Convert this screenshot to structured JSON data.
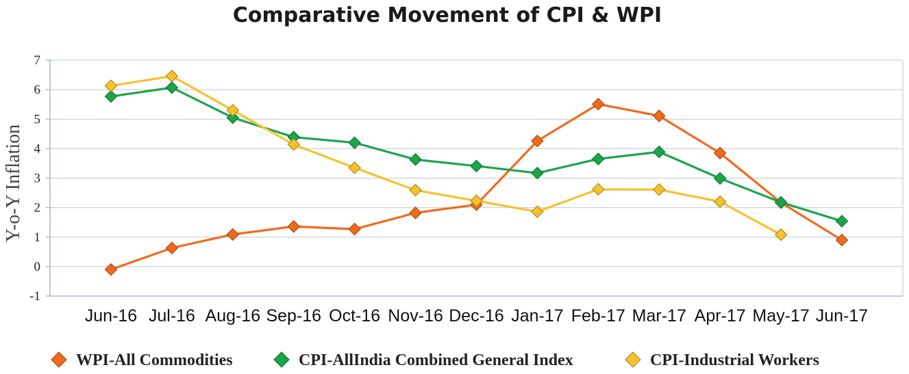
{
  "chart_data": {
    "type": "line",
    "title": "Comparative Movement of CPI & WPI",
    "xlabel": "",
    "ylabel": "Y-o-Y Inflation",
    "ylim": [
      -1,
      7
    ],
    "yticks": [
      "-1",
      "0",
      "1",
      "2",
      "3",
      "4",
      "5",
      "6",
      "7"
    ],
    "categories": [
      "Jun-16",
      "Jul-16",
      "Aug-16",
      "Sep-16",
      "Oct-16",
      "Nov-16",
      "Dec-16",
      "Jan-17",
      "Feb-17",
      "Mar-17",
      "Apr-17",
      "May-17",
      "Jun-17"
    ],
    "grid": true,
    "legend_position": "bottom",
    "marker": "diamond",
    "series": [
      {
        "name": "WPI-All Commodities",
        "color": "#f06a1c",
        "values": [
          -0.1,
          0.63,
          1.09,
          1.36,
          1.27,
          1.82,
          2.1,
          4.26,
          5.51,
          5.11,
          3.85,
          2.17,
          0.9
        ]
      },
      {
        "name": "CPI-AllIndia Combined General Index",
        "color": "#1aa54b",
        "values": [
          5.77,
          6.07,
          5.05,
          4.39,
          4.2,
          3.63,
          3.41,
          3.17,
          3.65,
          3.89,
          2.99,
          2.18,
          1.54
        ]
      },
      {
        "name": "CPI-Industrial Workers",
        "color": "#f6c12d",
        "values": [
          6.13,
          6.46,
          5.3,
          4.14,
          3.35,
          2.59,
          2.23,
          1.86,
          2.62,
          2.61,
          2.2,
          1.08,
          null
        ]
      }
    ]
  }
}
